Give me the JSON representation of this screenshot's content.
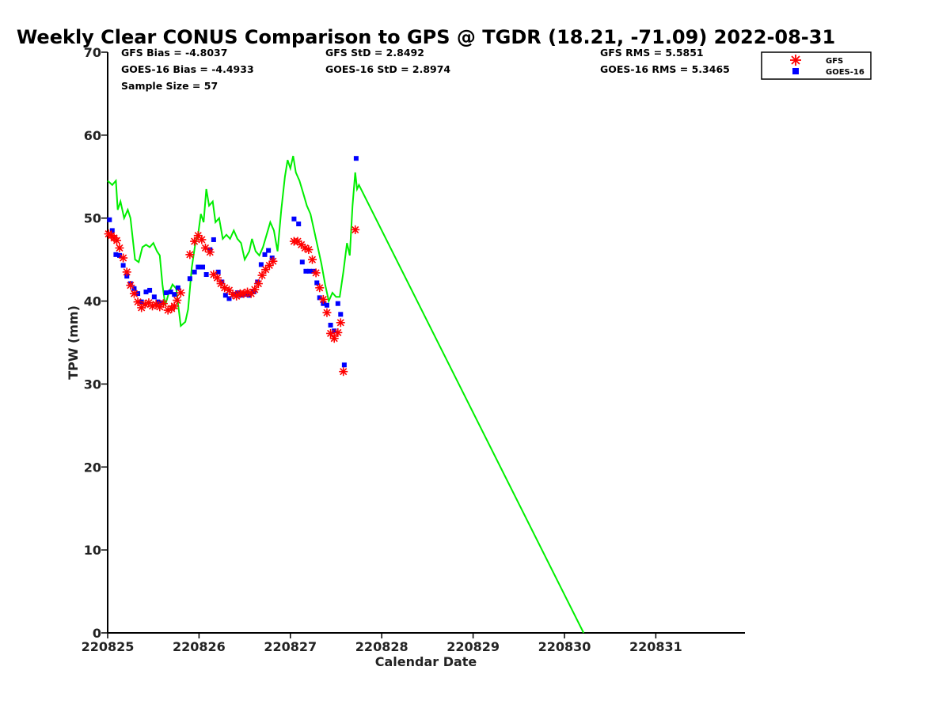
{
  "chart_data": {
    "type": "scatter",
    "title": "Weekly Clear CONUS Comparison to GPS @ TGDR (18.21, -71.09) 2022-08-31",
    "xlabel": "Calendar Date",
    "ylabel": "TPW (mm)",
    "xticks": [
      "220825",
      "220826",
      "220827",
      "220828",
      "220829",
      "220830",
      "220831"
    ],
    "xlim": [
      0,
      7
    ],
    "ylim": [
      0,
      70
    ],
    "yticks": [
      0,
      10,
      20,
      30,
      40,
      50,
      60,
      70
    ],
    "legend_position": "top-right (outside plot)",
    "grid": false,
    "stats": {
      "gfs_bias": "GFS Bias = -4.8037",
      "goes_bias": "GOES-16 Bias = -4.4933",
      "sample_size": "Sample Size = 57",
      "gfs_std": "GFS StD = 2.8492",
      "goes_std": "GOES-16 StD = 2.8974",
      "gfs_rms": "GFS RMS = 5.5851",
      "goes_rms": "GOES-16 RMS = 5.3465"
    },
    "series": [
      {
        "name": "GFS",
        "marker": "asterisk",
        "color": "#ff0000",
        "points": [
          [
            0.01,
            48.1
          ],
          [
            0.04,
            47.9
          ],
          [
            0.07,
            47.6
          ],
          [
            0.1,
            47.3
          ],
          [
            0.13,
            46.4
          ],
          [
            0.17,
            45.2
          ],
          [
            0.21,
            43.5
          ],
          [
            0.25,
            41.9
          ],
          [
            0.29,
            40.9
          ],
          [
            0.33,
            39.9
          ],
          [
            0.37,
            39.2
          ],
          [
            0.41,
            39.6
          ],
          [
            0.45,
            39.8
          ],
          [
            0.49,
            39.4
          ],
          [
            0.53,
            39.6
          ],
          [
            0.57,
            39.3
          ],
          [
            0.61,
            39.7
          ],
          [
            0.66,
            38.9
          ],
          [
            0.7,
            39.1
          ],
          [
            0.73,
            39.4
          ],
          [
            0.76,
            40.1
          ],
          [
            0.8,
            41.0
          ],
          [
            0.9,
            45.6
          ],
          [
            0.95,
            47.2
          ],
          [
            0.99,
            47.9
          ],
          [
            1.03,
            47.4
          ],
          [
            1.07,
            46.4
          ],
          [
            1.12,
            45.9
          ],
          [
            1.16,
            43.2
          ],
          [
            1.2,
            42.8
          ],
          [
            1.24,
            42.1
          ],
          [
            1.28,
            41.6
          ],
          [
            1.33,
            41.3
          ],
          [
            1.37,
            40.8
          ],
          [
            1.41,
            40.6
          ],
          [
            1.45,
            40.9
          ],
          [
            1.49,
            40.9
          ],
          [
            1.53,
            41.1
          ],
          [
            1.57,
            40.9
          ],
          [
            1.61,
            41.4
          ],
          [
            1.65,
            42.1
          ],
          [
            1.69,
            43.1
          ],
          [
            1.73,
            43.8
          ],
          [
            1.77,
            44.3
          ],
          [
            1.81,
            44.8
          ],
          [
            2.04,
            47.2
          ],
          [
            2.08,
            47.2
          ],
          [
            2.12,
            46.8
          ],
          [
            2.16,
            46.4
          ],
          [
            2.2,
            46.2
          ],
          [
            2.24,
            45.0
          ],
          [
            2.28,
            43.4
          ],
          [
            2.32,
            41.6
          ],
          [
            2.36,
            40.2
          ],
          [
            2.4,
            38.6
          ],
          [
            2.44,
            36.1
          ],
          [
            2.48,
            35.5
          ],
          [
            2.52,
            36.2
          ],
          [
            2.55,
            37.4
          ],
          [
            2.58,
            31.5
          ],
          [
            2.71,
            48.6
          ]
        ]
      },
      {
        "name": "GOES-16",
        "marker": "square",
        "color": "#0000ff",
        "points": [
          [
            0.02,
            49.8
          ],
          [
            0.05,
            48.5
          ],
          [
            0.09,
            45.6
          ],
          [
            0.13,
            45.5
          ],
          [
            0.17,
            44.3
          ],
          [
            0.21,
            43.0
          ],
          [
            0.25,
            42.1
          ],
          [
            0.29,
            41.5
          ],
          [
            0.33,
            40.9
          ],
          [
            0.37,
            39.9
          ],
          [
            0.42,
            41.1
          ],
          [
            0.46,
            41.3
          ],
          [
            0.51,
            40.5
          ],
          [
            0.55,
            39.9
          ],
          [
            0.59,
            39.8
          ],
          [
            0.64,
            41.0
          ],
          [
            0.69,
            41.1
          ],
          [
            0.73,
            40.8
          ],
          [
            0.77,
            41.6
          ],
          [
            0.9,
            42.7
          ],
          [
            0.95,
            43.5
          ],
          [
            0.99,
            44.1
          ],
          [
            1.04,
            44.1
          ],
          [
            1.08,
            43.2
          ],
          [
            1.12,
            46.2
          ],
          [
            1.16,
            47.4
          ],
          [
            1.21,
            43.5
          ],
          [
            1.25,
            42.3
          ],
          [
            1.29,
            40.7
          ],
          [
            1.33,
            40.3
          ],
          [
            1.38,
            40.8
          ],
          [
            1.42,
            41.0
          ],
          [
            1.46,
            40.7
          ],
          [
            1.5,
            40.8
          ],
          [
            1.55,
            40.7
          ],
          [
            1.6,
            41.1
          ],
          [
            1.64,
            42.3
          ],
          [
            1.68,
            44.4
          ],
          [
            1.72,
            45.6
          ],
          [
            1.76,
            46.1
          ],
          [
            1.8,
            45.2
          ],
          [
            2.04,
            49.9
          ],
          [
            2.09,
            49.3
          ],
          [
            2.13,
            44.7
          ],
          [
            2.17,
            43.6
          ],
          [
            2.21,
            43.6
          ],
          [
            2.25,
            43.6
          ],
          [
            2.29,
            42.2
          ],
          [
            2.32,
            40.4
          ],
          [
            2.36,
            39.7
          ],
          [
            2.4,
            39.5
          ],
          [
            2.44,
            37.1
          ],
          [
            2.48,
            36.4
          ],
          [
            2.52,
            39.7
          ],
          [
            2.55,
            38.4
          ],
          [
            2.59,
            32.3
          ],
          [
            2.72,
            57.2
          ]
        ]
      },
      {
        "name": "GPS",
        "marker": "line",
        "color": "#00ee00",
        "points": [
          [
            0.0,
            54.5
          ],
          [
            0.05,
            54.0
          ],
          [
            0.09,
            54.5
          ],
          [
            0.11,
            51.0
          ],
          [
            0.14,
            52.0
          ],
          [
            0.18,
            50.0
          ],
          [
            0.22,
            51.0
          ],
          [
            0.25,
            50.0
          ],
          [
            0.3,
            45.0
          ],
          [
            0.34,
            44.7
          ],
          [
            0.38,
            46.5
          ],
          [
            0.42,
            46.8
          ],
          [
            0.46,
            46.5
          ],
          [
            0.5,
            47.0
          ],
          [
            0.54,
            46.0
          ],
          [
            0.57,
            45.5
          ],
          [
            0.6,
            42.0
          ],
          [
            0.63,
            39.5
          ],
          [
            0.67,
            41.0
          ],
          [
            0.71,
            42.0
          ],
          [
            0.75,
            41.5
          ],
          [
            0.8,
            37.0
          ],
          [
            0.85,
            37.5
          ],
          [
            0.88,
            39.0
          ],
          [
            0.92,
            44.0
          ],
          [
            0.96,
            47.0
          ],
          [
            0.99,
            48.0
          ],
          [
            1.02,
            50.5
          ],
          [
            1.05,
            49.5
          ],
          [
            1.08,
            53.5
          ],
          [
            1.11,
            51.5
          ],
          [
            1.15,
            52.0
          ],
          [
            1.18,
            49.5
          ],
          [
            1.22,
            50.0
          ],
          [
            1.26,
            47.5
          ],
          [
            1.3,
            48.0
          ],
          [
            1.34,
            47.5
          ],
          [
            1.38,
            48.5
          ],
          [
            1.42,
            47.5
          ],
          [
            1.46,
            47.0
          ],
          [
            1.5,
            45.0
          ],
          [
            1.55,
            46.0
          ],
          [
            1.58,
            47.5
          ],
          [
            1.62,
            46.0
          ],
          [
            1.66,
            45.5
          ],
          [
            1.7,
            46.5
          ],
          [
            1.74,
            48.0
          ],
          [
            1.78,
            49.5
          ],
          [
            1.82,
            48.5
          ],
          [
            1.86,
            46.0
          ],
          [
            1.9,
            51.0
          ],
          [
            1.94,
            55.0
          ],
          [
            1.97,
            57.0
          ],
          [
            2.0,
            56.0
          ],
          [
            2.03,
            57.5
          ],
          [
            2.06,
            55.5
          ],
          [
            2.1,
            54.5
          ],
          [
            2.14,
            53.0
          ],
          [
            2.18,
            51.5
          ],
          [
            2.22,
            50.5
          ],
          [
            2.26,
            48.5
          ],
          [
            2.3,
            46.5
          ],
          [
            2.34,
            44.5
          ],
          [
            2.38,
            42.0
          ],
          [
            2.42,
            40.0
          ],
          [
            2.46,
            41.0
          ],
          [
            2.5,
            40.5
          ],
          [
            2.54,
            40.5
          ],
          [
            2.58,
            43.5
          ],
          [
            2.62,
            47.0
          ],
          [
            2.65,
            45.5
          ],
          [
            2.68,
            51.5
          ],
          [
            2.71,
            55.5
          ],
          [
            2.73,
            53.5
          ],
          [
            2.75,
            54.0
          ],
          [
            5.21,
            0.0
          ]
        ]
      }
    ]
  }
}
